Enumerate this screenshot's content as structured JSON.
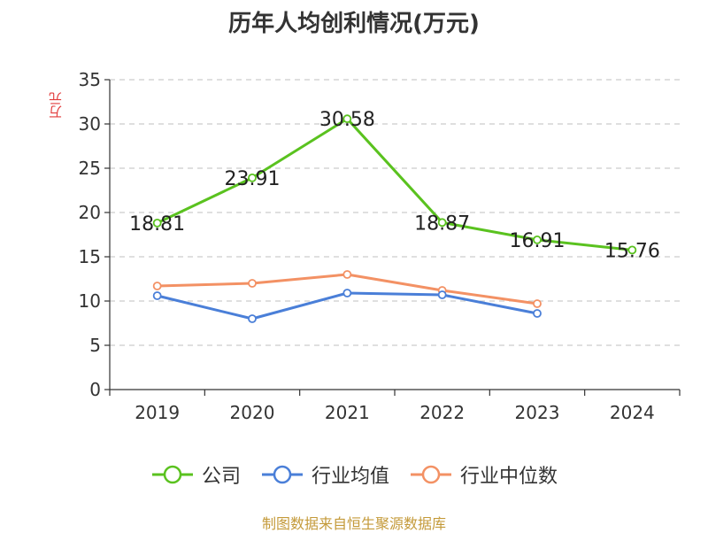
{
  "chart_data": {
    "type": "line",
    "title": "历年人均创利情况(万元)",
    "ylabel": "万元",
    "xlabel": "",
    "categories": [
      "2019",
      "2020",
      "2021",
      "2022",
      "2023",
      "2024"
    ],
    "ylim": [
      0,
      35
    ],
    "yticks": [
      0,
      5,
      10,
      15,
      20,
      25,
      30,
      35
    ],
    "grid": true,
    "legend_position": "bottom",
    "series": [
      {
        "name": "公司",
        "color": "#5ac21f",
        "values": [
          18.81,
          23.91,
          30.58,
          18.87,
          16.91,
          15.76
        ],
        "labels": [
          "18.81",
          "23.91",
          "30.58",
          "18.87",
          "16.91",
          "15.76"
        ]
      },
      {
        "name": "行业均值",
        "color": "#4a7fd8",
        "values": [
          10.6,
          8.0,
          10.9,
          10.7,
          8.6,
          null
        ]
      },
      {
        "name": "行业中位数",
        "color": "#f39164",
        "values": [
          11.7,
          12.0,
          13.0,
          11.2,
          9.7,
          null
        ]
      }
    ]
  },
  "source": "制图数据来自恒生聚源数据库"
}
